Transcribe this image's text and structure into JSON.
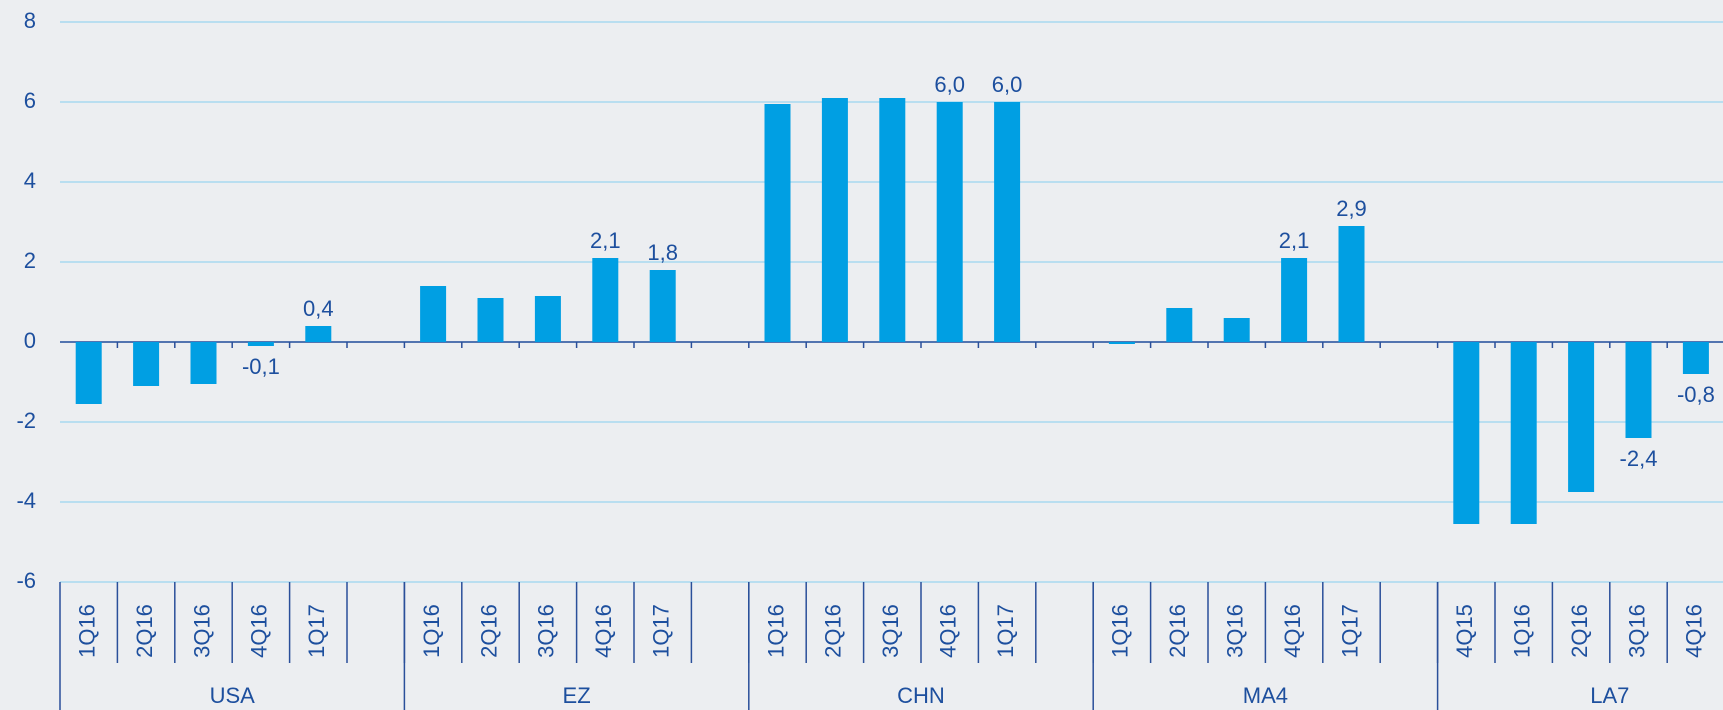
{
  "chart_data": {
    "type": "bar",
    "color": "#009fe3",
    "ylim": [
      -6,
      8
    ],
    "yticks": [
      -6,
      -4,
      -2,
      0,
      2,
      4,
      6,
      8
    ],
    "grid": true,
    "groups": [
      {
        "label": "USA",
        "categories": [
          "1Q16",
          "2Q16",
          "3Q16",
          "4Q16",
          "1Q17"
        ],
        "values": [
          -1.55,
          -1.1,
          -1.05,
          -0.1,
          0.4
        ],
        "value_labels": [
          null,
          null,
          null,
          "-0,1",
          "0,4"
        ]
      },
      {
        "label": "EZ",
        "categories": [
          "1Q16",
          "2Q16",
          "3Q16",
          "4Q16",
          "1Q17"
        ],
        "values": [
          1.4,
          1.1,
          1.15,
          2.1,
          1.8
        ],
        "value_labels": [
          null,
          null,
          null,
          "2,1",
          "1,8"
        ]
      },
      {
        "label": "CHN",
        "categories": [
          "1Q16",
          "2Q16",
          "3Q16",
          "4Q16",
          "1Q17"
        ],
        "values": [
          5.95,
          6.1,
          6.1,
          6.0,
          6.0
        ],
        "value_labels": [
          null,
          null,
          null,
          "6,0",
          "6,0"
        ]
      },
      {
        "label": "MA4",
        "categories": [
          "1Q16",
          "2Q16",
          "3Q16",
          "4Q16",
          "1Q17"
        ],
        "values": [
          -0.05,
          0.85,
          0.6,
          2.1,
          2.9
        ],
        "value_labels": [
          null,
          null,
          null,
          "2,1",
          "2,9"
        ]
      },
      {
        "label": "LA7",
        "categories": [
          "4Q15",
          "1Q16",
          "2Q16",
          "3Q16",
          "4Q16"
        ],
        "values": [
          -4.55,
          -4.55,
          -3.75,
          -2.4,
          -0.8
        ],
        "value_labels": [
          null,
          null,
          null,
          "-2,4",
          "-0,8"
        ]
      }
    ]
  }
}
